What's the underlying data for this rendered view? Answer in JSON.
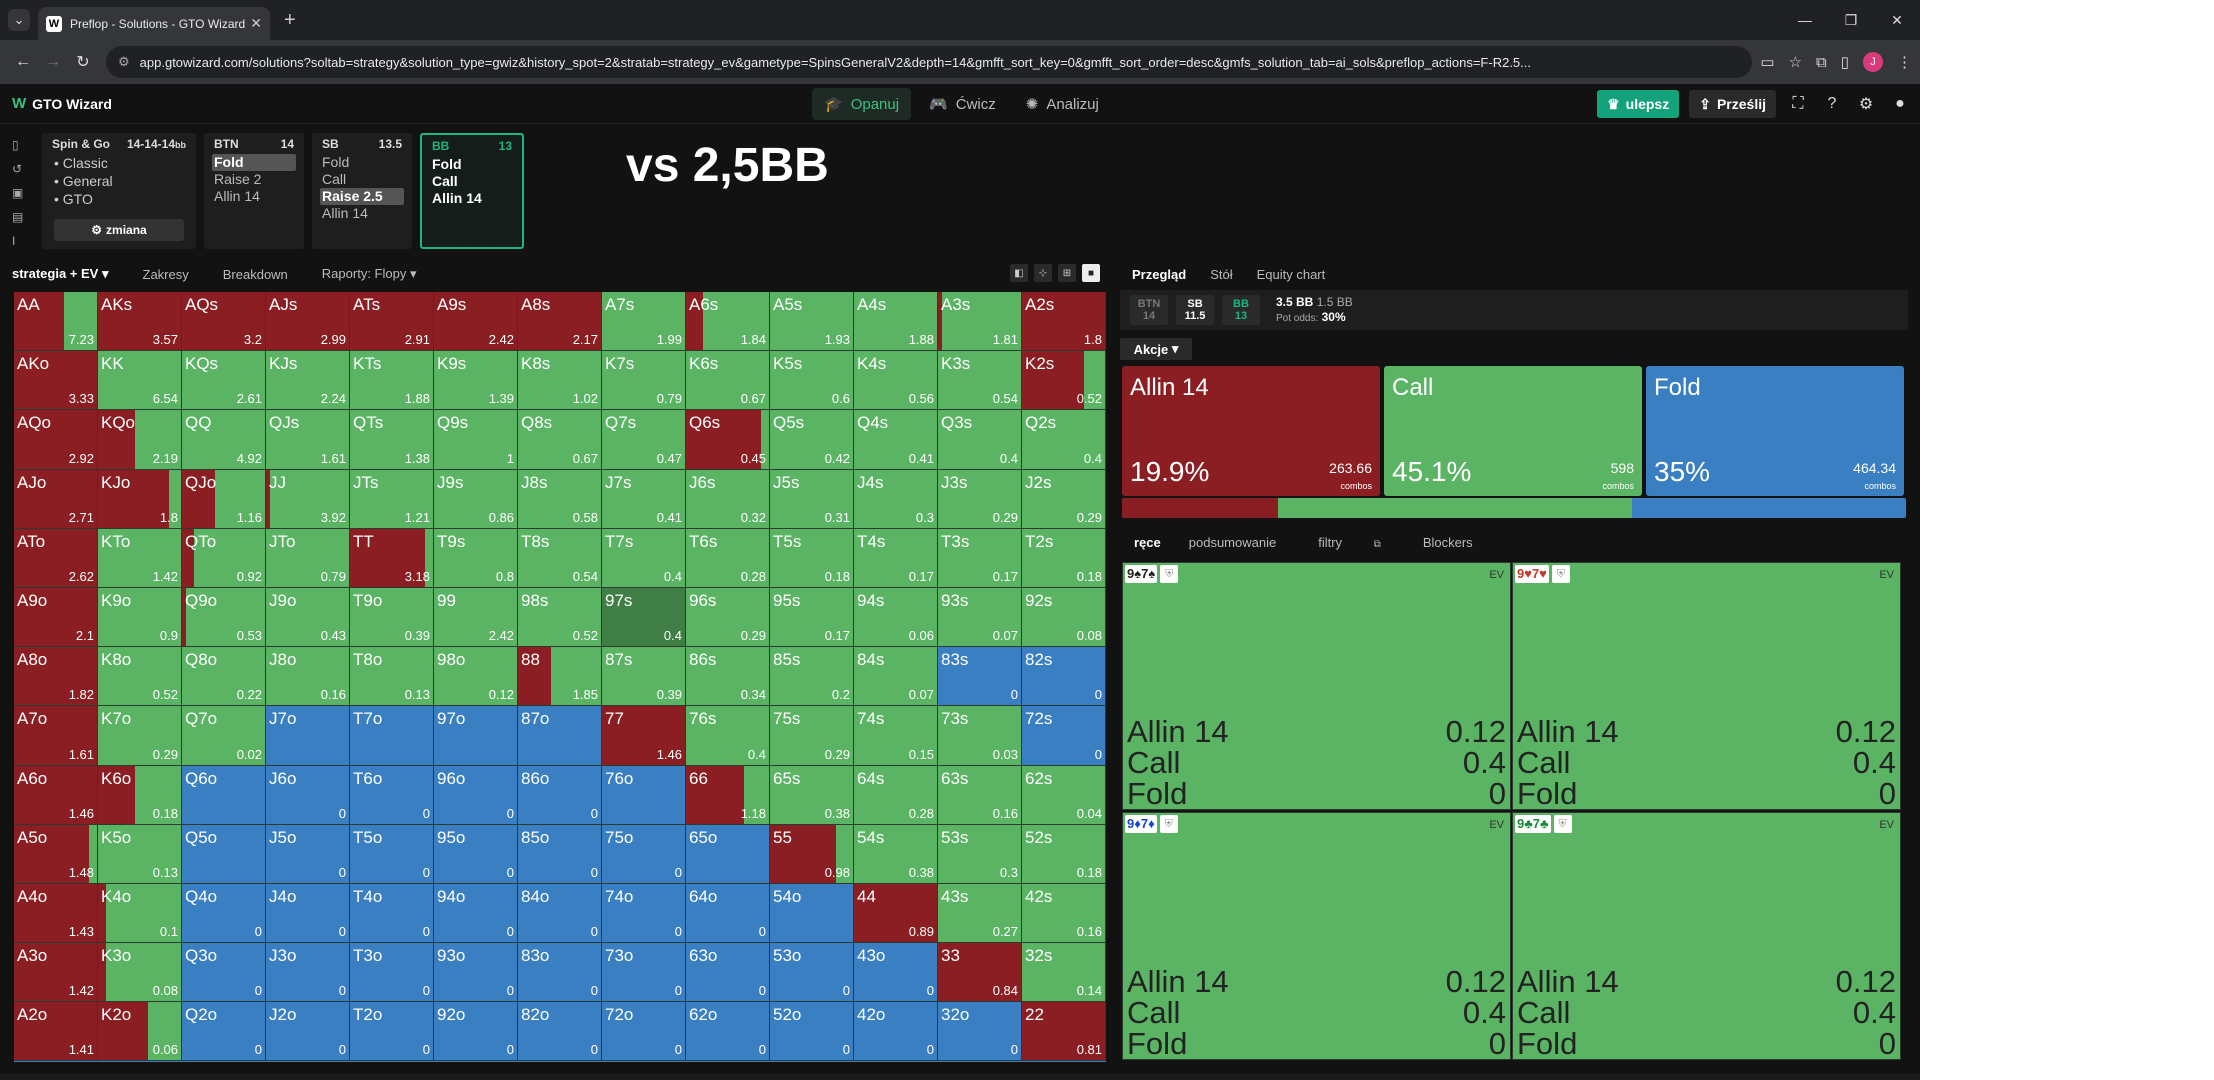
{
  "browser": {
    "tab_title": "Preflop - Solutions - GTO Wizard",
    "tab_favicon": "W",
    "url": "app.gtowizard.com/solutions?soltab=strategy&solution_type=gwiz&history_spot=2&stratab=strategy_ev&gametype=SpinsGeneralV2&depth=14&gmfft_sort_key=0&gmfft_sort_order=desc&gmfs_solution_tab=ai_sols&preflop_actions=F-R2.5...",
    "avatar": "J"
  },
  "app": {
    "logo": "GTO Wizard",
    "nav": [
      "Opanuj",
      "Ćwicz",
      "Analizuj"
    ],
    "upgrade": "ulepsz",
    "send": "Prześlij"
  },
  "game_card": {
    "title": "Spin & Go",
    "stacks": "14-14-14",
    "unit": "bb",
    "items": [
      "Classic",
      "General",
      "GTO"
    ],
    "change": "zmiana"
  },
  "positions": [
    {
      "name": "BTN",
      "stack": "14",
      "actions": [
        "Fold",
        "Raise 2",
        "Allin 14"
      ],
      "selected": 0
    },
    {
      "name": "SB",
      "stack": "13.5",
      "actions": [
        "Fold",
        "Call",
        "Raise 2.5",
        "Allin 14"
      ],
      "selected": 2
    },
    {
      "name": "BB",
      "stack": "13",
      "actions": [
        "Fold",
        "Call",
        "Allin 14"
      ],
      "selected": -1
    }
  ],
  "overlay_text": "vs 2,5BB",
  "toolbar": {
    "tabs": [
      "strategia + EV",
      "Zakresy",
      "Breakdown",
      "Raporty: Flopy"
    ]
  },
  "colors": {
    "allin": "#8b1e22",
    "call": "#5ab464",
    "fold": "#3a7fc1",
    "highlight": "#3f7f46",
    "accent": "#1fb483"
  },
  "matrix": [
    [
      "AA",
      "0.6",
      "0",
      "7.23"
    ],
    [
      "AKs",
      "1",
      "0",
      "3.57"
    ],
    [
      "AQs",
      "1",
      "0",
      "3.2"
    ],
    [
      "AJs",
      "1",
      "0",
      "2.99"
    ],
    [
      "ATs",
      "1",
      "0",
      "2.91"
    ],
    [
      "A9s",
      "1",
      "0",
      "2.42"
    ],
    [
      "A8s",
      "1",
      "0",
      "2.17"
    ],
    [
      "A7s",
      "0",
      "0",
      "1.99"
    ],
    [
      "A6s",
      "0.2",
      "0",
      "1.84"
    ],
    [
      "A5s",
      "0",
      "0",
      "1.93"
    ],
    [
      "A4s",
      "0",
      "0",
      "1.88"
    ],
    [
      "A3s",
      "0.05",
      "0",
      "1.81"
    ],
    [
      "A2s",
      "1",
      "0",
      "1.8"
    ],
    [
      "AKo",
      "1",
      "0",
      "3.33"
    ],
    [
      "KK",
      "0",
      "0",
      "6.54"
    ],
    [
      "KQs",
      "0",
      "0",
      "2.61"
    ],
    [
      "KJs",
      "0",
      "0",
      "2.24"
    ],
    [
      "KTs",
      "0",
      "0",
      "1.88"
    ],
    [
      "K9s",
      "0",
      "0",
      "1.39"
    ],
    [
      "K8s",
      "0",
      "0",
      "1.02"
    ],
    [
      "K7s",
      "0",
      "0",
      "0.79"
    ],
    [
      "K6s",
      "0",
      "0",
      "0.67"
    ],
    [
      "K5s",
      "0",
      "0",
      "0.6"
    ],
    [
      "K4s",
      "0",
      "0",
      "0.56"
    ],
    [
      "K3s",
      "0",
      "0",
      "0.54"
    ],
    [
      "K2s",
      "0.75",
      "0",
      "0.52"
    ],
    [
      "AQo",
      "1",
      "0",
      "2.92"
    ],
    [
      "KQo",
      "0.45",
      "0",
      "2.19"
    ],
    [
      "QQ",
      "0",
      "0",
      "4.92"
    ],
    [
      "QJs",
      "0",
      "0",
      "1.61"
    ],
    [
      "QTs",
      "0",
      "0",
      "1.38"
    ],
    [
      "Q9s",
      "0",
      "0",
      "1"
    ],
    [
      "Q8s",
      "0",
      "0",
      "0.67"
    ],
    [
      "Q7s",
      "0",
      "0",
      "0.47"
    ],
    [
      "Q6s",
      "0.9",
      "0",
      "0.45"
    ],
    [
      "Q5s",
      "0",
      "0",
      "0.42"
    ],
    [
      "Q4s",
      "0",
      "0",
      "0.41"
    ],
    [
      "Q3s",
      "0",
      "0",
      "0.4"
    ],
    [
      "Q2s",
      "0",
      "0",
      "0.4"
    ],
    [
      "AJo",
      "1",
      "0",
      "2.71"
    ],
    [
      "KJo",
      "0.85",
      "0",
      "1.8"
    ],
    [
      "QJo",
      "0.4",
      "0",
      "1.16"
    ],
    [
      "JJ",
      "0.05",
      "0",
      "3.92"
    ],
    [
      "JTs",
      "0",
      "0",
      "1.21"
    ],
    [
      "J9s",
      "0",
      "0",
      "0.86"
    ],
    [
      "J8s",
      "0",
      "0",
      "0.58"
    ],
    [
      "J7s",
      "0",
      "0",
      "0.41"
    ],
    [
      "J6s",
      "0",
      "0",
      "0.32"
    ],
    [
      "J5s",
      "0",
      "0",
      "0.31"
    ],
    [
      "J4s",
      "0",
      "0",
      "0.3"
    ],
    [
      "J3s",
      "0",
      "0",
      "0.29"
    ],
    [
      "J2s",
      "0",
      "0",
      "0.29"
    ],
    [
      "ATo",
      "1",
      "0",
      "2.62"
    ],
    [
      "KTo",
      "0",
      "0",
      "1.42"
    ],
    [
      "QTo",
      "0.15",
      "0",
      "0.92"
    ],
    [
      "JTo",
      "0",
      "0",
      "0.79"
    ],
    [
      "TT",
      "0.9",
      "0",
      "3.18"
    ],
    [
      "T9s",
      "0",
      "0",
      "0.8"
    ],
    [
      "T8s",
      "0",
      "0",
      "0.54"
    ],
    [
      "T7s",
      "0",
      "0",
      "0.4"
    ],
    [
      "T6s",
      "0",
      "0",
      "0.28"
    ],
    [
      "T5s",
      "0",
      "0",
      "0.18"
    ],
    [
      "T4s",
      "0",
      "0",
      "0.17"
    ],
    [
      "T3s",
      "0",
      "0",
      "0.17"
    ],
    [
      "T2s",
      "0",
      "0",
      "0.18"
    ],
    [
      "A9o",
      "1",
      "0",
      "2.1"
    ],
    [
      "K9o",
      "0",
      "0",
      "0.9"
    ],
    [
      "Q9o",
      "0.05",
      "0",
      "0.53"
    ],
    [
      "J9o",
      "0",
      "0",
      "0.43"
    ],
    [
      "T9o",
      "0",
      "0",
      "0.39"
    ],
    [
      "99",
      "0",
      "0",
      "2.42"
    ],
    [
      "98s",
      "0",
      "0",
      "0.52"
    ],
    [
      "97s",
      "0",
      "0",
      "0.4"
    ],
    [
      "96s",
      "0",
      "0",
      "0.29"
    ],
    [
      "95s",
      "0",
      "0",
      "0.17"
    ],
    [
      "94s",
      "0",
      "0",
      "0.06"
    ],
    [
      "93s",
      "0",
      "0",
      "0.07"
    ],
    [
      "92s",
      "0",
      "0",
      "0.08"
    ],
    [
      "A8o",
      "1",
      "0",
      "1.82"
    ],
    [
      "K8o",
      "0",
      "0",
      "0.52"
    ],
    [
      "Q8o",
      "0",
      "0",
      "0.22"
    ],
    [
      "J8o",
      "0",
      "0",
      "0.16"
    ],
    [
      "T8o",
      "0",
      "0",
      "0.13"
    ],
    [
      "98o",
      "0",
      "0",
      "0.12"
    ],
    [
      "88",
      "0.4",
      "0",
      "1.85"
    ],
    [
      "87s",
      "0",
      "0",
      "0.39"
    ],
    [
      "86s",
      "0",
      "0",
      "0.34"
    ],
    [
      "85s",
      "0",
      "0",
      "0.2"
    ],
    [
      "84s",
      "0",
      "0",
      "0.07"
    ],
    [
      "83s",
      "0",
      "1",
      "0"
    ],
    [
      "82s",
      "0",
      "1",
      "0"
    ],
    [
      "A7o",
      "1",
      "0",
      "1.61"
    ],
    [
      "K7o",
      "0",
      "0",
      "0.29"
    ],
    [
      "Q7o",
      "0",
      "0",
      "0.02"
    ],
    [
      "J7o",
      "0",
      "1",
      ""
    ],
    [
      "T7o",
      "0",
      "1",
      ""
    ],
    [
      "97o",
      "0",
      "1",
      ""
    ],
    [
      "87o",
      "0",
      "1",
      ""
    ],
    [
      "77",
      "1",
      "0",
      "1.46"
    ],
    [
      "76s",
      "0",
      "0",
      "0.4"
    ],
    [
      "75s",
      "0",
      "0",
      "0.29"
    ],
    [
      "74s",
      "0",
      "0",
      "0.15"
    ],
    [
      "73s",
      "0",
      "0",
      "0.03"
    ],
    [
      "72s",
      "0",
      "1",
      "0"
    ],
    [
      "A6o",
      "1",
      "0",
      "1.46"
    ],
    [
      "K6o",
      "0.45",
      "0",
      "0.18"
    ],
    [
      "Q6o",
      "0",
      "1",
      ""
    ],
    [
      "J6o",
      "0",
      "1",
      "0"
    ],
    [
      "T6o",
      "0",
      "1",
      "0"
    ],
    [
      "96o",
      "0",
      "1",
      "0"
    ],
    [
      "86o",
      "0",
      "1",
      "0"
    ],
    [
      "76o",
      "0",
      "1",
      ""
    ],
    [
      "66",
      "0.7",
      "0",
      "1.18"
    ],
    [
      "65s",
      "0",
      "0",
      "0.38"
    ],
    [
      "64s",
      "0",
      "0",
      "0.28"
    ],
    [
      "63s",
      "0",
      "0",
      "0.16"
    ],
    [
      "62s",
      "0",
      "0",
      "0.04"
    ],
    [
      "A5o",
      "0.9",
      "0",
      "1.48"
    ],
    [
      "K5o",
      "0",
      "0",
      "0.13"
    ],
    [
      "Q5o",
      "0",
      "1",
      ""
    ],
    [
      "J5o",
      "0",
      "1",
      "0"
    ],
    [
      "T5o",
      "0",
      "1",
      "0"
    ],
    [
      "95o",
      "0",
      "1",
      "0"
    ],
    [
      "85o",
      "0",
      "1",
      "0"
    ],
    [
      "75o",
      "0",
      "1",
      "0"
    ],
    [
      "65o",
      "0",
      "1",
      ""
    ],
    [
      "55",
      "0.8",
      "0",
      "0.98"
    ],
    [
      "54s",
      "0",
      "0",
      "0.38"
    ],
    [
      "53s",
      "0",
      "0",
      "0.3"
    ],
    [
      "52s",
      "0",
      "0",
      "0.18"
    ],
    [
      "A4o",
      "1",
      "0",
      "1.43"
    ],
    [
      "K4o",
      "0.1",
      "0",
      "0.1"
    ],
    [
      "Q4o",
      "0",
      "1",
      "0"
    ],
    [
      "J4o",
      "0",
      "1",
      "0"
    ],
    [
      "T4o",
      "0",
      "1",
      "0"
    ],
    [
      "94o",
      "0",
      "1",
      "0"
    ],
    [
      "84o",
      "0",
      "1",
      "0"
    ],
    [
      "74o",
      "0",
      "1",
      "0"
    ],
    [
      "64o",
      "0",
      "1",
      "0"
    ],
    [
      "54o",
      "0",
      "1",
      ""
    ],
    [
      "44",
      "1",
      "0",
      "0.89"
    ],
    [
      "43s",
      "0",
      "0",
      "0.27"
    ],
    [
      "42s",
      "0",
      "0",
      "0.16"
    ],
    [
      "A3o",
      "1",
      "0",
      "1.42"
    ],
    [
      "K3o",
      "0.1",
      "0",
      "0.08"
    ],
    [
      "Q3o",
      "0",
      "1",
      "0"
    ],
    [
      "J3o",
      "0",
      "1",
      "0"
    ],
    [
      "T3o",
      "0",
      "1",
      "0"
    ],
    [
      "93o",
      "0",
      "1",
      "0"
    ],
    [
      "83o",
      "0",
      "1",
      "0"
    ],
    [
      "73o",
      "0",
      "1",
      "0"
    ],
    [
      "63o",
      "0",
      "1",
      "0"
    ],
    [
      "53o",
      "0",
      "1",
      "0"
    ],
    [
      "43o",
      "0",
      "1",
      "0"
    ],
    [
      "33",
      "1",
      "0",
      "0.84"
    ],
    [
      "32s",
      "0",
      "0",
      "0.14"
    ],
    [
      "A2o",
      "1",
      "0",
      "1.41"
    ],
    [
      "K2o",
      "0.6",
      "0",
      "0.06"
    ],
    [
      "Q2o",
      "0",
      "1",
      "0"
    ],
    [
      "J2o",
      "0",
      "1",
      "0"
    ],
    [
      "T2o",
      "0",
      "1",
      "0"
    ],
    [
      "92o",
      "0",
      "1",
      "0"
    ],
    [
      "82o",
      "0",
      "1",
      "0"
    ],
    [
      "72o",
      "0",
      "1",
      "0"
    ],
    [
      "62o",
      "0",
      "1",
      "0"
    ],
    [
      "52o",
      "0",
      "1",
      "0"
    ],
    [
      "42o",
      "0",
      "1",
      "0"
    ],
    [
      "32o",
      "0",
      "1",
      "0"
    ],
    [
      "22",
      "1",
      "0",
      "0.81"
    ]
  ],
  "panel": {
    "tabs": [
      "Przegląd",
      "Stół",
      "Equity chart"
    ],
    "pot_positions": [
      {
        "name": "BTN",
        "stack": "14"
      },
      {
        "name": "SB",
        "stack": "11.5"
      },
      {
        "name": "BB",
        "stack": "13"
      }
    ],
    "pot": "3.5 BB",
    "pot_sub": "1.5 BB",
    "pot_odds_label": "Pot odds:",
    "pot_odds": "30%",
    "actions_label": "Akcje",
    "actions": [
      {
        "name": "Allin 14",
        "pct": "19.9%",
        "frac": 0.199,
        "combos": "263.66",
        "color": "#8b1e22"
      },
      {
        "name": "Call",
        "pct": "45.1%",
        "frac": 0.451,
        "combos": "598",
        "color": "#5ab464"
      },
      {
        "name": "Fold",
        "pct": "35%",
        "frac": 0.35,
        "combos": "464.34",
        "color": "#3a7fc1"
      }
    ],
    "combos_label": "combos",
    "lower_tabs": [
      "ręce",
      "podsumowanie",
      "filtry",
      "Blockers"
    ],
    "ev_label": "EV",
    "combos": [
      {
        "cards": "9♠7♠",
        "color": "#222",
        "rows": [
          [
            "Allin 14",
            "0.12"
          ],
          [
            "Call",
            "0.4"
          ],
          [
            "Fold",
            "0"
          ]
        ]
      },
      {
        "cards": "9♥7♥",
        "color": "#c0392b",
        "rows": [
          [
            "Allin 14",
            "0.12"
          ],
          [
            "Call",
            "0.4"
          ],
          [
            "Fold",
            "0"
          ]
        ]
      },
      {
        "cards": "9♦7♦",
        "color": "#1a47c7",
        "rows": [
          [
            "Allin 14",
            "0.12"
          ],
          [
            "Call",
            "0.4"
          ],
          [
            "Fold",
            "0"
          ]
        ]
      },
      {
        "cards": "9♣7♣",
        "color": "#1a8a3a",
        "rows": [
          [
            "Allin 14",
            "0.12"
          ],
          [
            "Call",
            "0.4"
          ],
          [
            "Fold",
            "0"
          ]
        ]
      }
    ]
  }
}
